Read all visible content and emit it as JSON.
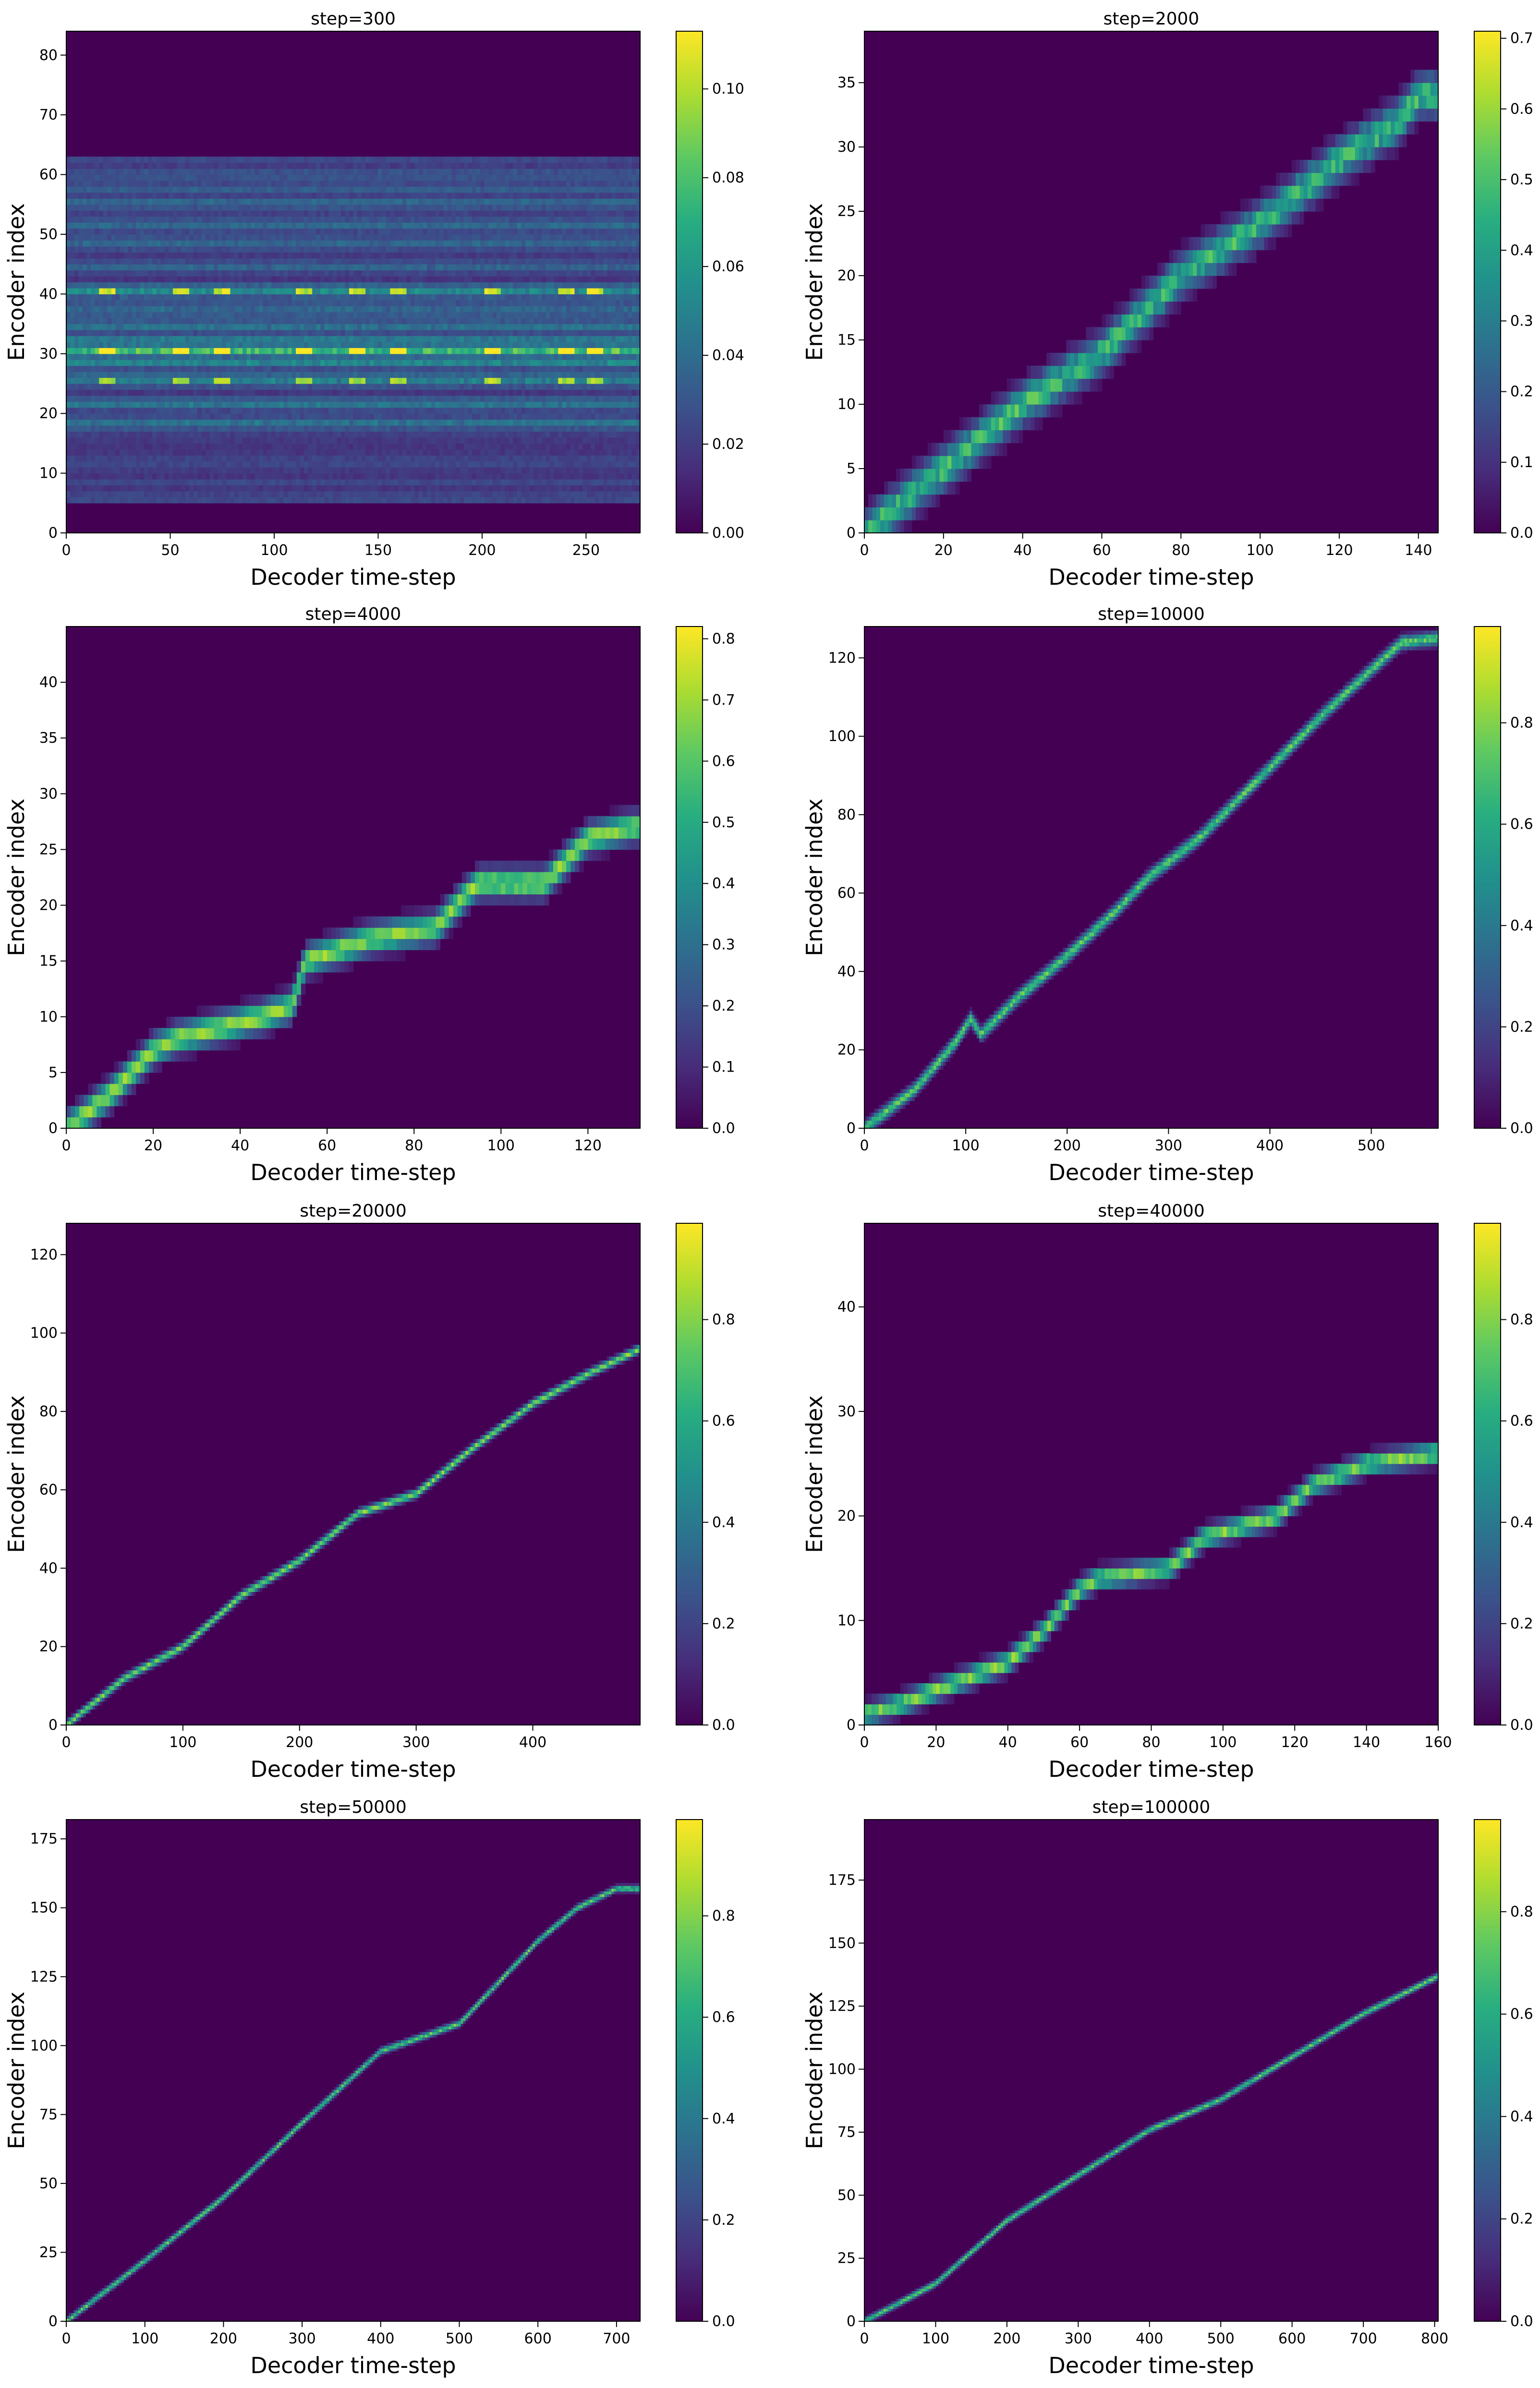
{
  "figure": {
    "colormap": "viridis",
    "background_color": "#ffffff",
    "low_color": "#440154",
    "high_color": "#fde725"
  },
  "chart_data": [
    {
      "type": "heatmap",
      "title": "step=300",
      "xlabel": "Decoder time-step",
      "ylabel": "Encoder index",
      "xlim": [
        0,
        276
      ],
      "ylim": [
        0,
        84
      ],
      "xticks": [
        0,
        50,
        100,
        150,
        200,
        250
      ],
      "yticks": [
        0,
        10,
        20,
        30,
        40,
        50,
        60,
        70,
        80
      ],
      "colorbar": {
        "vmin": 0,
        "vmax": 0.113,
        "ticks": [
          "0.00",
          "0.02",
          "0.04",
          "0.06",
          "0.08",
          "0.10"
        ],
        "tick_values": [
          0,
          0.02,
          0.04,
          0.06,
          0.08,
          0.1
        ]
      },
      "pattern": "diffuse",
      "band_rows": [
        [
          18,
          0.45
        ],
        [
          21,
          0.4
        ],
        [
          25,
          0.55
        ],
        [
          28,
          0.5
        ],
        [
          30,
          1.0
        ],
        [
          32,
          0.45
        ],
        [
          34,
          0.4
        ],
        [
          37,
          0.35
        ],
        [
          40,
          0.6
        ],
        [
          44,
          0.3
        ],
        [
          48,
          0.3
        ],
        [
          51,
          0.3
        ],
        [
          55,
          0.25
        ],
        [
          57,
          0.2
        ],
        [
          60,
          0.15
        ]
      ],
      "hot_columns": [
        20,
        55,
        75,
        115,
        140,
        160,
        205,
        240,
        255
      ]
    },
    {
      "type": "heatmap",
      "title": "step=2000",
      "xlabel": "Decoder time-step",
      "ylabel": "Encoder index",
      "xlim": [
        0,
        145
      ],
      "ylim": [
        0,
        39
      ],
      "xticks": [
        0,
        20,
        40,
        60,
        80,
        100,
        120,
        140
      ],
      "yticks": [
        0,
        5,
        10,
        15,
        20,
        25,
        30,
        35
      ],
      "colorbar": {
        "vmin": 0,
        "vmax": 0.71,
        "ticks": [
          "0.0",
          "0.1",
          "0.2",
          "0.3",
          "0.4",
          "0.5",
          "0.6",
          "0.7"
        ],
        "tick_values": [
          0,
          0.1,
          0.2,
          0.3,
          0.4,
          0.5,
          0.6,
          0.7
        ]
      },
      "pattern": "path",
      "band_width": 1.5,
      "peak": 0.5,
      "path": [
        [
          0,
          0
        ],
        [
          20,
          5
        ],
        [
          40,
          10
        ],
        [
          60,
          14
        ],
        [
          80,
          20
        ],
        [
          100,
          24
        ],
        [
          120,
          29
        ],
        [
          135,
          32
        ],
        [
          140,
          34
        ],
        [
          145,
          34
        ]
      ]
    },
    {
      "type": "heatmap",
      "title": "step=4000",
      "xlabel": "Decoder time-step",
      "ylabel": "Encoder index",
      "xlim": [
        0,
        132
      ],
      "ylim": [
        0,
        45
      ],
      "xticks": [
        0,
        20,
        40,
        60,
        80,
        100,
        120
      ],
      "yticks": [
        0,
        5,
        10,
        15,
        20,
        25,
        30,
        35,
        40
      ],
      "colorbar": {
        "vmin": 0,
        "vmax": 0.82,
        "ticks": [
          "0.0",
          "0.1",
          "0.2",
          "0.3",
          "0.4",
          "0.5",
          "0.6",
          "0.7",
          "0.8"
        ],
        "tick_values": [
          0,
          0.1,
          0.2,
          0.3,
          0.4,
          0.5,
          0.6,
          0.7,
          0.8
        ]
      },
      "pattern": "path",
      "band_width": 1.2,
      "peak": 0.75,
      "path": [
        [
          0,
          0
        ],
        [
          10,
          3
        ],
        [
          15,
          5
        ],
        [
          20,
          7
        ],
        [
          25,
          8
        ],
        [
          35,
          9
        ],
        [
          45,
          10
        ],
        [
          52,
          11
        ],
        [
          55,
          15
        ],
        [
          70,
          17
        ],
        [
          85,
          18
        ],
        [
          92,
          21
        ],
        [
          95,
          22
        ],
        [
          110,
          22
        ],
        [
          120,
          26
        ],
        [
          130,
          27
        ],
        [
          132,
          27
        ]
      ]
    },
    {
      "type": "heatmap",
      "title": "step=10000",
      "xlabel": "Decoder time-step",
      "ylabel": "Encoder index",
      "xlim": [
        0,
        566
      ],
      "ylim": [
        0,
        128
      ],
      "xticks": [
        0,
        100,
        200,
        300,
        400,
        500
      ],
      "yticks": [
        0,
        20,
        40,
        60,
        80,
        100,
        120
      ],
      "colorbar": {
        "vmin": 0,
        "vmax": 0.99,
        "ticks": [
          "0.0",
          "0.2",
          "0.4",
          "0.6",
          "0.8"
        ],
        "tick_values": [
          0,
          0.2,
          0.4,
          0.6,
          0.8
        ]
      },
      "pattern": "path",
      "band_width": 1.6,
      "peak": 0.6,
      "path": [
        [
          0,
          0
        ],
        [
          50,
          10
        ],
        [
          90,
          22
        ],
        [
          105,
          28
        ],
        [
          115,
          24
        ],
        [
          150,
          33
        ],
        [
          200,
          44
        ],
        [
          250,
          56
        ],
        [
          280,
          64
        ],
        [
          330,
          74
        ],
        [
          400,
          92
        ],
        [
          450,
          105
        ],
        [
          500,
          117
        ],
        [
          530,
          124
        ],
        [
          566,
          125
        ]
      ]
    },
    {
      "type": "heatmap",
      "title": "step=20000",
      "xlabel": "Decoder time-step",
      "ylabel": "Encoder index",
      "xlim": [
        0,
        492
      ],
      "ylim": [
        0,
        128
      ],
      "xticks": [
        0,
        100,
        200,
        300,
        400
      ],
      "yticks": [
        0,
        20,
        40,
        60,
        80,
        100,
        120
      ],
      "colorbar": {
        "vmin": 0,
        "vmax": 0.99,
        "ticks": [
          "0.0",
          "0.2",
          "0.4",
          "0.6",
          "0.8"
        ],
        "tick_values": [
          0,
          0.2,
          0.4,
          0.6,
          0.8
        ]
      },
      "pattern": "path",
      "band_width": 1.0,
      "peak": 0.7,
      "path": [
        [
          0,
          0
        ],
        [
          50,
          12
        ],
        [
          100,
          20
        ],
        [
          150,
          33
        ],
        [
          200,
          42
        ],
        [
          250,
          54
        ],
        [
          280,
          57
        ],
        [
          300,
          59
        ],
        [
          350,
          71
        ],
        [
          400,
          82
        ],
        [
          450,
          90
        ],
        [
          492,
          96
        ]
      ]
    },
    {
      "type": "heatmap",
      "title": "step=40000",
      "xlabel": "Decoder time-step",
      "ylabel": "Encoder index",
      "xlim": [
        0,
        160
      ],
      "ylim": [
        0,
        48
      ],
      "xticks": [
        0,
        20,
        40,
        60,
        80,
        100,
        120,
        140,
        160
      ],
      "yticks": [
        0,
        10,
        20,
        30,
        40
      ],
      "colorbar": {
        "vmin": 0,
        "vmax": 0.99,
        "ticks": [
          "0.0",
          "0.2",
          "0.4",
          "0.6",
          "0.8"
        ],
        "tick_values": [
          0,
          0.2,
          0.4,
          0.6,
          0.8
        ]
      },
      "pattern": "path",
      "band_width": 0.9,
      "peak": 0.7,
      "path": [
        [
          0,
          1
        ],
        [
          10,
          2
        ],
        [
          25,
          4
        ],
        [
          40,
          6
        ],
        [
          50,
          9
        ],
        [
          60,
          13
        ],
        [
          65,
          14
        ],
        [
          85,
          15
        ],
        [
          95,
          18
        ],
        [
          115,
          20
        ],
        [
          125,
          23
        ],
        [
          140,
          25
        ],
        [
          160,
          26
        ]
      ]
    },
    {
      "type": "heatmap",
      "title": "step=50000",
      "xlabel": "Decoder time-step",
      "ylabel": "Encoder index",
      "xlim": [
        0,
        730
      ],
      "ylim": [
        0,
        182
      ],
      "xticks": [
        0,
        100,
        200,
        300,
        400,
        500,
        600,
        700
      ],
      "yticks": [
        0,
        25,
        50,
        75,
        100,
        125,
        150,
        175
      ],
      "colorbar": {
        "vmin": 0,
        "vmax": 0.99,
        "ticks": [
          "0.0",
          "0.2",
          "0.4",
          "0.6",
          "0.8"
        ],
        "tick_values": [
          0,
          0.2,
          0.4,
          0.6,
          0.8
        ]
      },
      "pattern": "path",
      "band_width": 1.1,
      "peak": 0.6,
      "path": [
        [
          0,
          0
        ],
        [
          100,
          22
        ],
        [
          200,
          45
        ],
        [
          300,
          72
        ],
        [
          400,
          98
        ],
        [
          450,
          103
        ],
        [
          500,
          108
        ],
        [
          600,
          138
        ],
        [
          650,
          150
        ],
        [
          700,
          157
        ],
        [
          730,
          157
        ]
      ]
    },
    {
      "type": "heatmap",
      "title": "step=100000",
      "xlabel": "Decoder time-step",
      "ylabel": "Encoder index",
      "xlim": [
        0,
        805
      ],
      "ylim": [
        0,
        199
      ],
      "xticks": [
        0,
        100,
        200,
        300,
        400,
        500,
        600,
        700,
        800
      ],
      "yticks": [
        0,
        25,
        50,
        75,
        100,
        125,
        150,
        175
      ],
      "colorbar": {
        "vmin": 0,
        "vmax": 0.98,
        "ticks": [
          "0.0",
          "0.2",
          "0.4",
          "0.6",
          "0.8"
        ],
        "tick_values": [
          0,
          0.2,
          0.4,
          0.6,
          0.8
        ]
      },
      "pattern": "path",
      "band_width": 1.2,
      "peak": 0.6,
      "path": [
        [
          0,
          0
        ],
        [
          100,
          15
        ],
        [
          200,
          40
        ],
        [
          300,
          58
        ],
        [
          400,
          76
        ],
        [
          450,
          82
        ],
        [
          500,
          88
        ],
        [
          600,
          105
        ],
        [
          700,
          122
        ],
        [
          805,
          137
        ]
      ]
    }
  ]
}
